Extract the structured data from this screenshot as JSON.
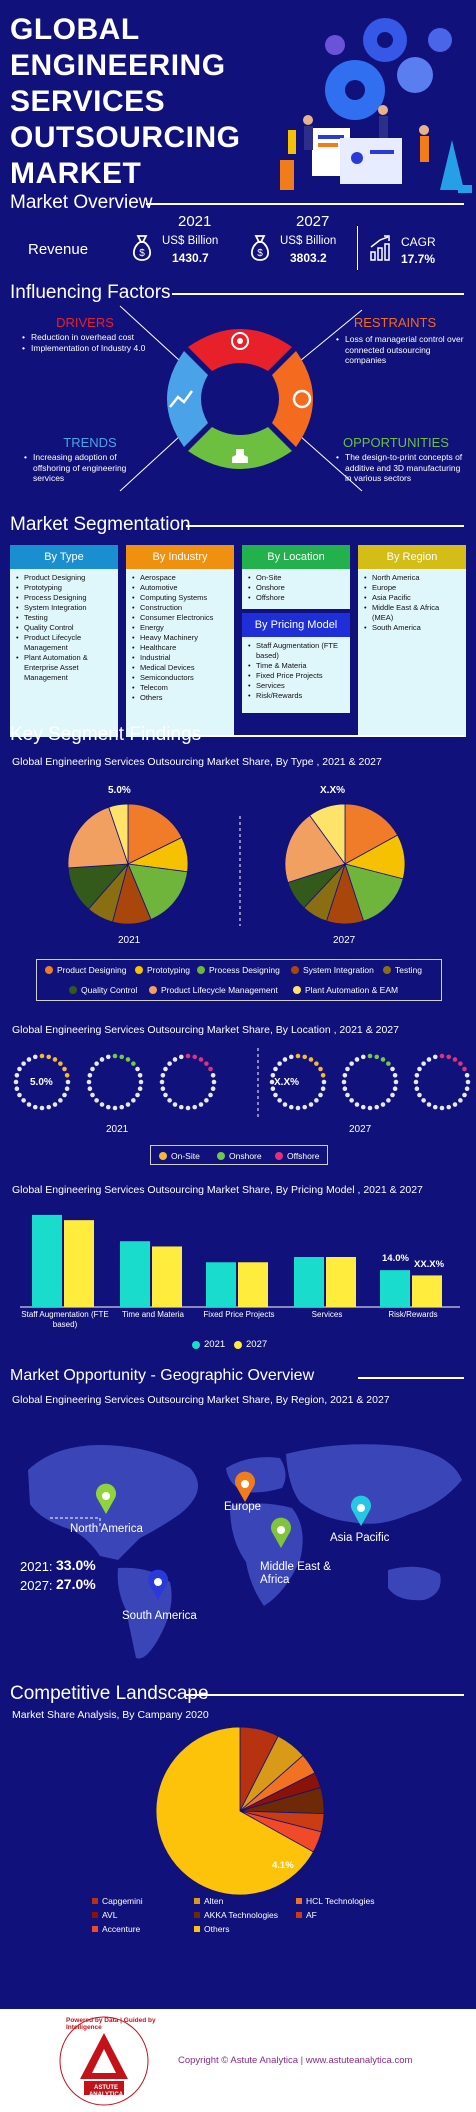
{
  "header": {
    "title": "GLOBAL ENGINEERING SERVICES OUTSOURCING MARKET"
  },
  "overview": {
    "title": "Market Overview",
    "revenue_label": "Revenue",
    "y1": "2021",
    "y2": "2027",
    "unit": "US$ Billion",
    "v1": "1430.7",
    "v2": "3803.2",
    "cagr_label": "CAGR",
    "cagr": "17.7%"
  },
  "factors": {
    "title": "Influencing Factors",
    "drivers": {
      "title": "DRIVERS",
      "items": [
        "Reduction in overhead cost",
        "Implementation of Industry 4.0"
      ]
    },
    "restraints": {
      "title": "RESTRAINTS",
      "items": [
        "Loss of managerial control over connected outsourcing companies"
      ]
    },
    "trends": {
      "title": "TRENDS",
      "items": [
        "Increasing adoption of offshoring of engineering services"
      ]
    },
    "opportunities": {
      "title": "OPPORTUNITIES",
      "items": [
        "The design-to-print concepts of additive and 3D manufacturing in various sectors"
      ]
    },
    "colors": {
      "drivers": "#e8202a",
      "restraints": "#f46a1f",
      "trends": "#4aa3e8",
      "opportunities": "#6dbf3f"
    }
  },
  "segmentation": {
    "title": "Market Segmentation",
    "by_type": {
      "title": "By Type",
      "color": "#1a8fd0",
      "items": [
        "Product Designing",
        "Prototyping",
        "Process Designing",
        "System Integration",
        "Testing",
        "Quality Control",
        "Product Lifecycle Management",
        "Plant Automation & Enterprise Asset Management"
      ]
    },
    "by_industry": {
      "title": "By Industry",
      "color": "#f0900f",
      "items": [
        "Aerospace",
        "Automotive",
        "Computing Systems",
        "Construction",
        "Consumer Electronics",
        "Energy",
        "Heavy Machinery",
        "Healthcare",
        "Industrial",
        "Medical Devices",
        "Semiconductors",
        "Telecom",
        "Others"
      ]
    },
    "by_location": {
      "title": "By Location",
      "color": "#22b14c",
      "items": [
        "On-Site",
        "Onshore",
        "Offshore"
      ]
    },
    "by_pricing": {
      "title": "By Pricing Model",
      "color": "#1e2fd8",
      "items": [
        "Staff Augmentation (FTE based)",
        "Time & Materia",
        "Fixed Price Projects",
        "Services",
        "Risk/Rewards"
      ]
    },
    "by_region": {
      "title": "By Region",
      "color": "#d4bd16",
      "items": [
        "North America",
        "Europe",
        "Asia Pacific",
        "Middle East & Africa (MEA)",
        "South America"
      ]
    }
  },
  "findings": {
    "title": "Key Segment Findings"
  },
  "chart_data": [
    {
      "type": "pie",
      "title": "Global Engineering Services Outsourcing Market Share, By Type , 2021 & 2027",
      "categories": [
        "Product Designing",
        "Prototyping",
        "Process Designing",
        "System Integration",
        "Testing",
        "Quality Control",
        "Product Lifecycle Management",
        "Plant Automation & EAM"
      ],
      "colors": [
        "#f07c2a",
        "#f6c100",
        "#6fb53c",
        "#a8460c",
        "#8a6f12",
        "#335a1b",
        "#f2a062",
        "#fde36a"
      ],
      "series": [
        {
          "name": "2021",
          "values": [
            17,
            9,
            16,
            10,
            7,
            12,
            20,
            5
          ],
          "label": "5.0%"
        },
        {
          "name": "2027",
          "values": [
            17,
            12,
            16,
            10,
            7,
            8,
            20,
            10
          ],
          "label": "X.X%"
        }
      ]
    },
    {
      "type": "pie",
      "title": "Global Engineering Services Outsourcing Market Share, By Location , 2021 & 2027",
      "categories": [
        "On-Site",
        "Onshore",
        "Offshore"
      ],
      "colors": [
        "#f5b833",
        "#70c84a",
        "#e0317a"
      ],
      "series": [
        {
          "name": "2021",
          "label": "5.0%"
        },
        {
          "name": "2027",
          "label": "X.X%"
        }
      ]
    },
    {
      "type": "bar",
      "title": "Global Engineering Services Outsourcing Market Share, By Pricing Model , 2021 & 2027",
      "categories": [
        "Staff Augmentation (FTE based)",
        "Time and Materia",
        "Fixed Price Projects",
        "Services",
        "Risk/Rewards"
      ],
      "series": [
        {
          "name": "2021",
          "color": "#19dccc",
          "values": [
            35,
            25,
            17,
            19,
            14
          ],
          "labels": [
            "",
            "",
            "",
            "",
            "14.0%"
          ]
        },
        {
          "name": "2027",
          "color": "#ffec3d",
          "values": [
            33,
            23,
            17,
            19,
            12
          ],
          "labels": [
            "",
            "",
            "",
            "",
            "XX.X%"
          ]
        }
      ],
      "ylim": [
        0,
        38
      ]
    },
    {
      "type": "pie",
      "title": "Market Share Analysis, By Campany 2020",
      "categories": [
        "Capgemini",
        "Alten",
        "HCL Technologies",
        "AVL",
        "AKKA Technologies",
        "AF",
        "Accenture",
        "Others"
      ],
      "colors": [
        "#b7320e",
        "#d99a18",
        "#f17322",
        "#8a1208",
        "#6e2a06",
        "#ca3c12",
        "#f04a28",
        "#fdc30b"
      ],
      "values": [
        7.5,
        6,
        4,
        3,
        5,
        3.5,
        4.1,
        66.9
      ],
      "label": "4.1%"
    }
  ],
  "geo": {
    "title": "Market Opportunity - Geographic Overview",
    "chart_title": "Global Engineering Services Outsourcing Market Share, By Region, 2021 & 2027",
    "regions": [
      "North America",
      "Europe",
      "Asia Pacific",
      "Middle East & Africa",
      "South America"
    ],
    "pin_colors": [
      "#8fd43a",
      "#f07c1a",
      "#25c8e0",
      "#7fc43c",
      "#2a3ad8"
    ],
    "stats": [
      {
        "year": "2021:",
        "value": "33.0%"
      },
      {
        "year": "2027:",
        "value": "27.0%"
      }
    ]
  },
  "competitive": {
    "title": "Competitive Landscape"
  },
  "footer": {
    "copyright": "Copyright © Astute Analytica | www.astuteanalytica.com",
    "logo_tagline": "Powered by Data | Guided by Intelligence",
    "logo_name": "ASTUTE ANALYTICA"
  }
}
